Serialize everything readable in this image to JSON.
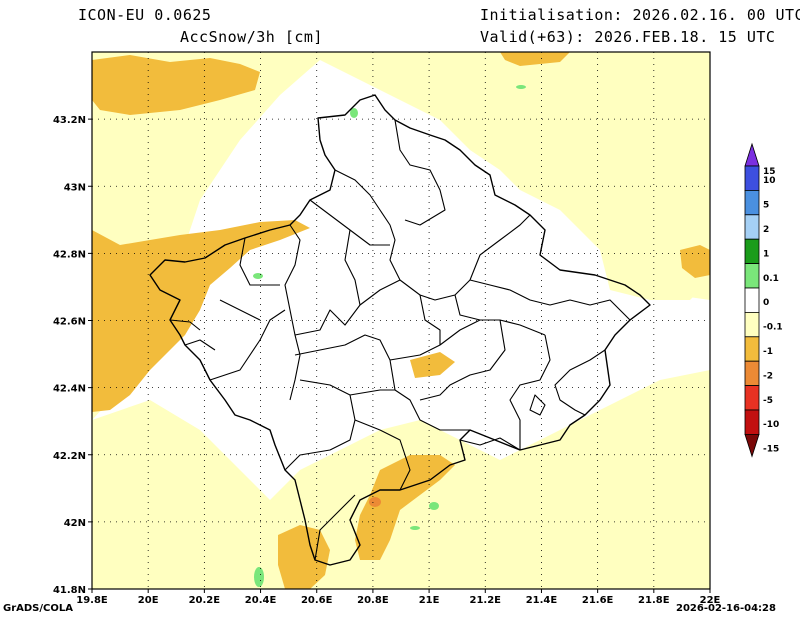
{
  "header": {
    "model": "ICON-EU 0.0625",
    "variable": "AccSnow/3h [cm]",
    "init": "Initialisation: 2026.02.16. 00 UTC",
    "valid": "Valid(+63): 2026.FEB.18. 15 UTC"
  },
  "axes": {
    "lon_ticks": [
      "19.8E",
      "20E",
      "20.2E",
      "20.4E",
      "20.6E",
      "20.8E",
      "21E",
      "21.2E",
      "21.4E",
      "21.6E",
      "21.8E",
      "22E"
    ],
    "lat_ticks": [
      "43.2N",
      "43N",
      "42.8N",
      "42.6N",
      "42.4N",
      "42.2N",
      "42N",
      "41.8N"
    ]
  },
  "legend": {
    "levels": [
      "15",
      "10",
      "5",
      "2",
      "1",
      "0.1",
      "0",
      "-0.1",
      "-1",
      "-2",
      "-5",
      "-10",
      "-15"
    ],
    "colors": [
      "#7b2fe0",
      "#3d4fe0",
      "#4a90e0",
      "#a5d0f5",
      "#1a9c1a",
      "#7ae67a",
      "#ffffff",
      "#ffffc0",
      "#f2bc3c",
      "#ec8a35",
      "#e83223",
      "#c21010",
      "#7a0808"
    ]
  },
  "footer": {
    "left": "GrADS/COLA",
    "right": "2026-02-16-04:28"
  },
  "chart_data": {
    "type": "heatmap",
    "lon_range": [
      19.8,
      22.0
    ],
    "lat_range": [
      41.8,
      43.4
    ],
    "fill_colors": {
      "light_yellow": "#ffffc0",
      "orange": "#f2bc3c",
      "dark_orange": "#ec8a35",
      "light_green": "#7ae67a",
      "white": "#ffffff"
    }
  }
}
